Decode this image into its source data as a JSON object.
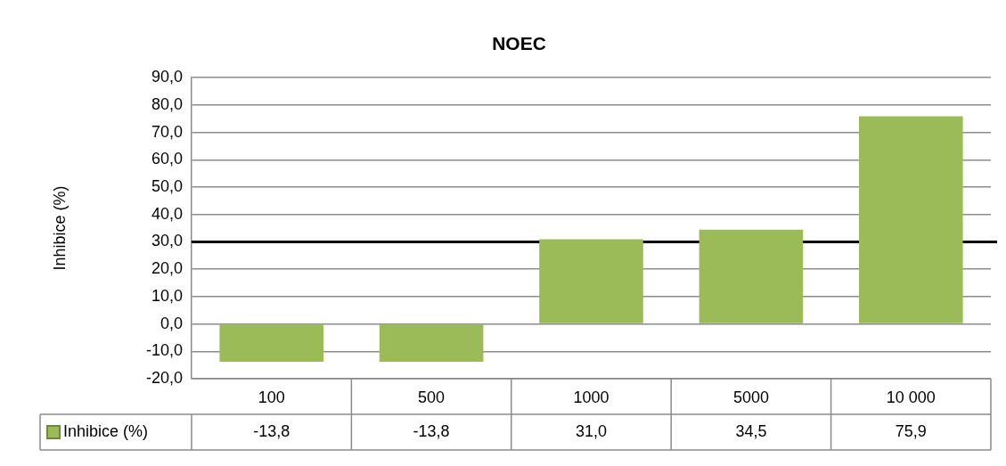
{
  "chart_data": {
    "type": "bar",
    "title": "NOEC",
    "ylabel": "Inhibice (%)",
    "categories": [
      "100",
      "500",
      "1000",
      "5000",
      "10 000"
    ],
    "series": [
      {
        "name": "Inhibice (%)",
        "color": "#9bbb59",
        "values": [
          -13.8,
          -13.8,
          31.0,
          34.5,
          75.9
        ],
        "value_labels": [
          "-13,8",
          "-13,8",
          "31,0",
          "34,5",
          "75,9"
        ]
      }
    ],
    "ylim": [
      -20,
      90
    ],
    "yticks": [
      {
        "value": -20,
        "label": "-20,0"
      },
      {
        "value": -10,
        "label": "-10,0"
      },
      {
        "value": 0,
        "label": "0,0"
      },
      {
        "value": 10,
        "label": "10,0"
      },
      {
        "value": 20,
        "label": "20,0"
      },
      {
        "value": 30,
        "label": "30,0"
      },
      {
        "value": 40,
        "label": "40,0"
      },
      {
        "value": 50,
        "label": "50,0"
      },
      {
        "value": 60,
        "label": "60,0"
      },
      {
        "value": 70,
        "label": "70,0"
      },
      {
        "value": 80,
        "label": "80,0"
      },
      {
        "value": 90,
        "label": "90,0"
      }
    ],
    "ref_lines": [
      {
        "axis": "y",
        "value": 30,
        "label": null,
        "color": "#000000"
      }
    ],
    "grid": "y",
    "legend": "bottom left"
  }
}
